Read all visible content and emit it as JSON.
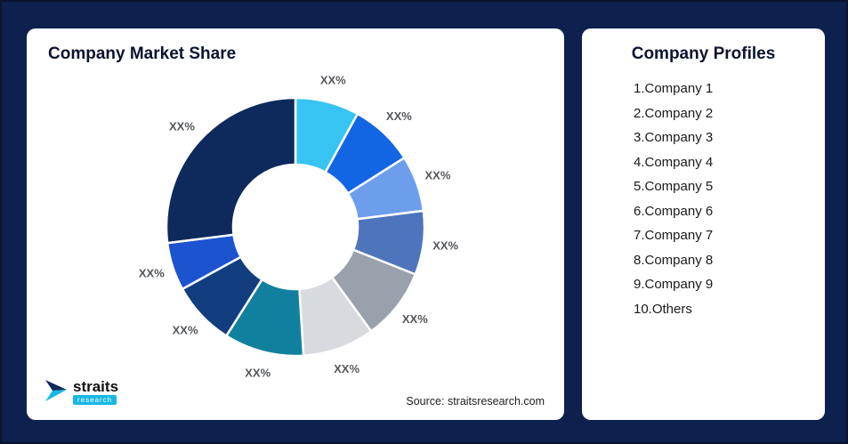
{
  "page": {
    "background": "#0E214E",
    "card_background": "#FFFFFF"
  },
  "market_share_card": {
    "title": "Company Market Share",
    "source": "Source: straitsresearch.com"
  },
  "logo": {
    "name": "straits",
    "sub": "research",
    "accent": "#18B7E3"
  },
  "profiles_card": {
    "title": "Company Profiles",
    "items": [
      "1.Company 1",
      "2.Company 2",
      "3.Company 3",
      "4.Company 4",
      "5.Company 5",
      "6.Company 6",
      "7.Company 7",
      "8.Company 8",
      "9.Company 9",
      "10.Others"
    ]
  },
  "chart_data": {
    "type": "pie",
    "subtype": "donut",
    "title": "Company Market Share",
    "display_label": "XX%",
    "labels": [
      "XX%",
      "XX%",
      "XX%",
      "XX%",
      "XX%",
      "XX%",
      "XX%",
      "XX%",
      "XX%",
      "XX%"
    ],
    "values": [
      8,
      8,
      7,
      8,
      9,
      9,
      10,
      8,
      6,
      27
    ],
    "colors": [
      "#37C4F2",
      "#1266E3",
      "#6D9EEC",
      "#4E74BC",
      "#98A1AC",
      "#D7DADF",
      "#11809F",
      "#123E80",
      "#1C54D0",
      "#0E2A5C"
    ],
    "legend": "none",
    "start_angle_deg": 0,
    "direction": "clockwise"
  }
}
